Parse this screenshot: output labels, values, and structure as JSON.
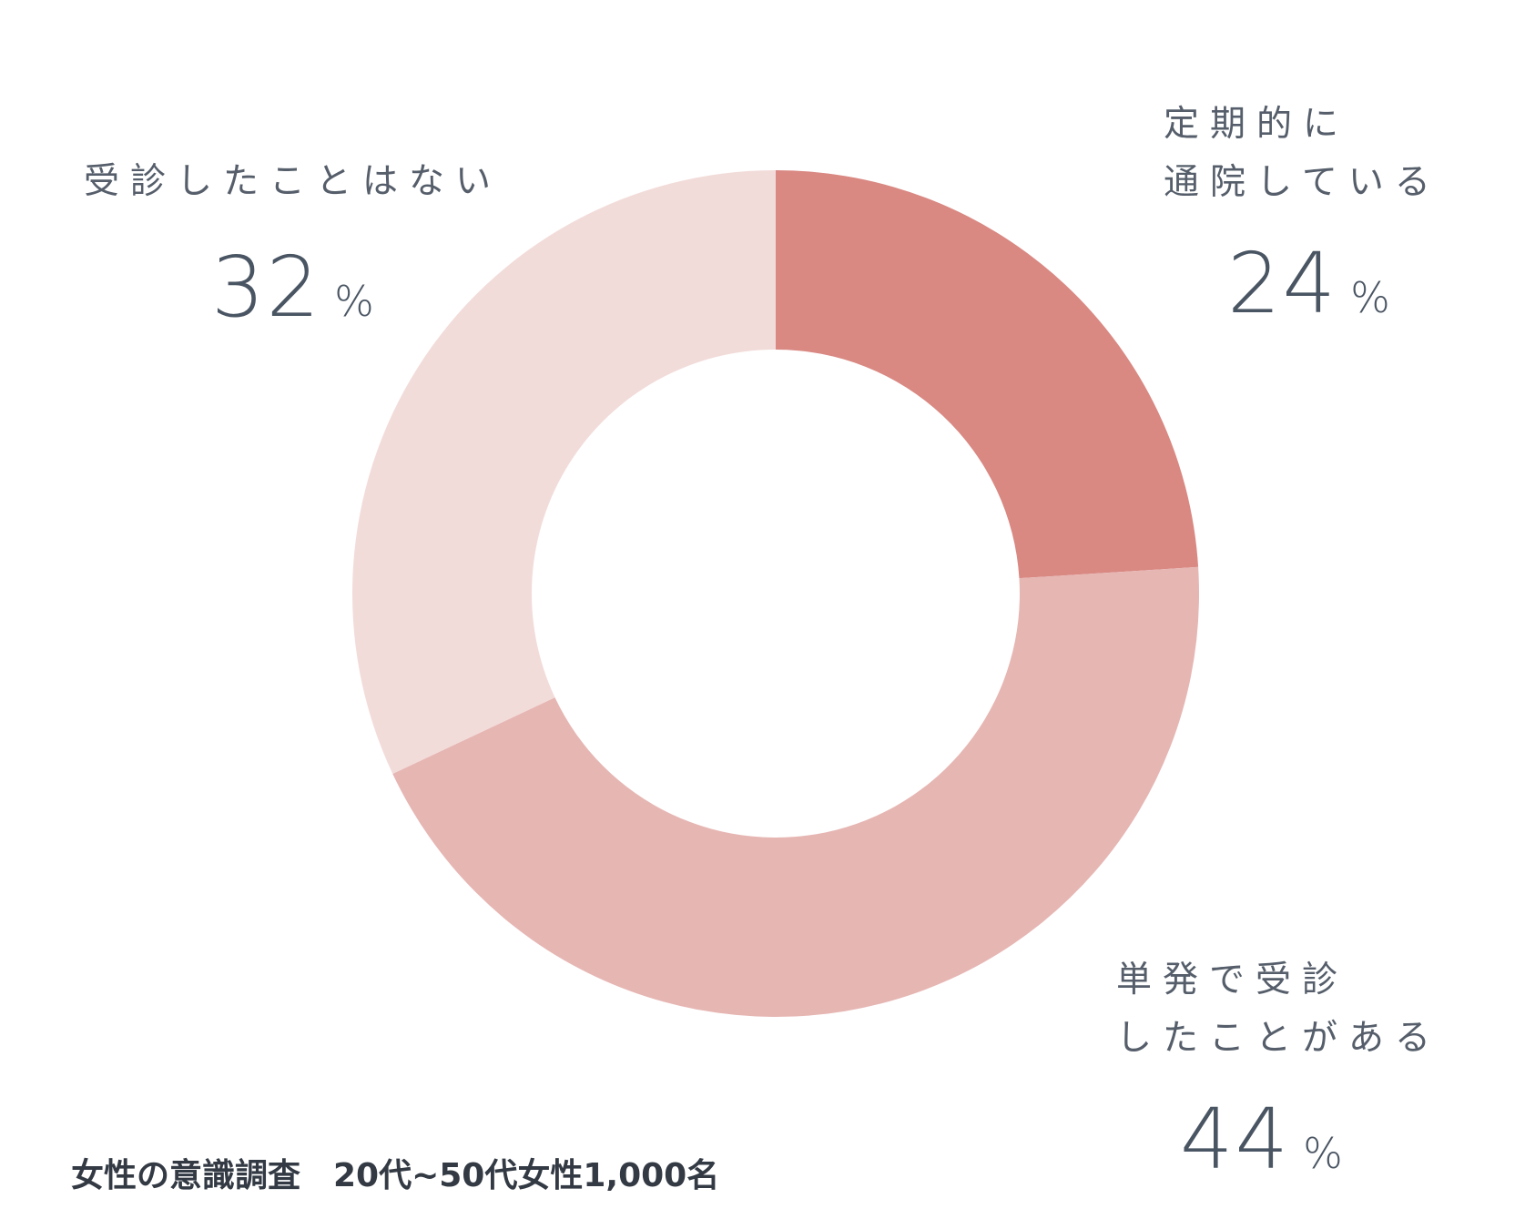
{
  "chart_data": {
    "type": "pie",
    "donut": true,
    "slices": [
      {
        "label_lines": [
          "定期的に",
          "通院している"
        ],
        "value": 24,
        "value_text": "24",
        "unit": "%",
        "color": "#d98882"
      },
      {
        "label_lines": [
          "単発で受診",
          "したことがある"
        ],
        "value": 44,
        "value_text": "44",
        "unit": "%",
        "color": "#e6b6b3"
      },
      {
        "label_lines": [
          "受診したことはない"
        ],
        "value": 32,
        "value_text": "32",
        "unit": "%",
        "color": "#f2dcda"
      }
    ]
  },
  "footer": {
    "text": "女性の意識調査　20代~50代女性1,000名"
  }
}
